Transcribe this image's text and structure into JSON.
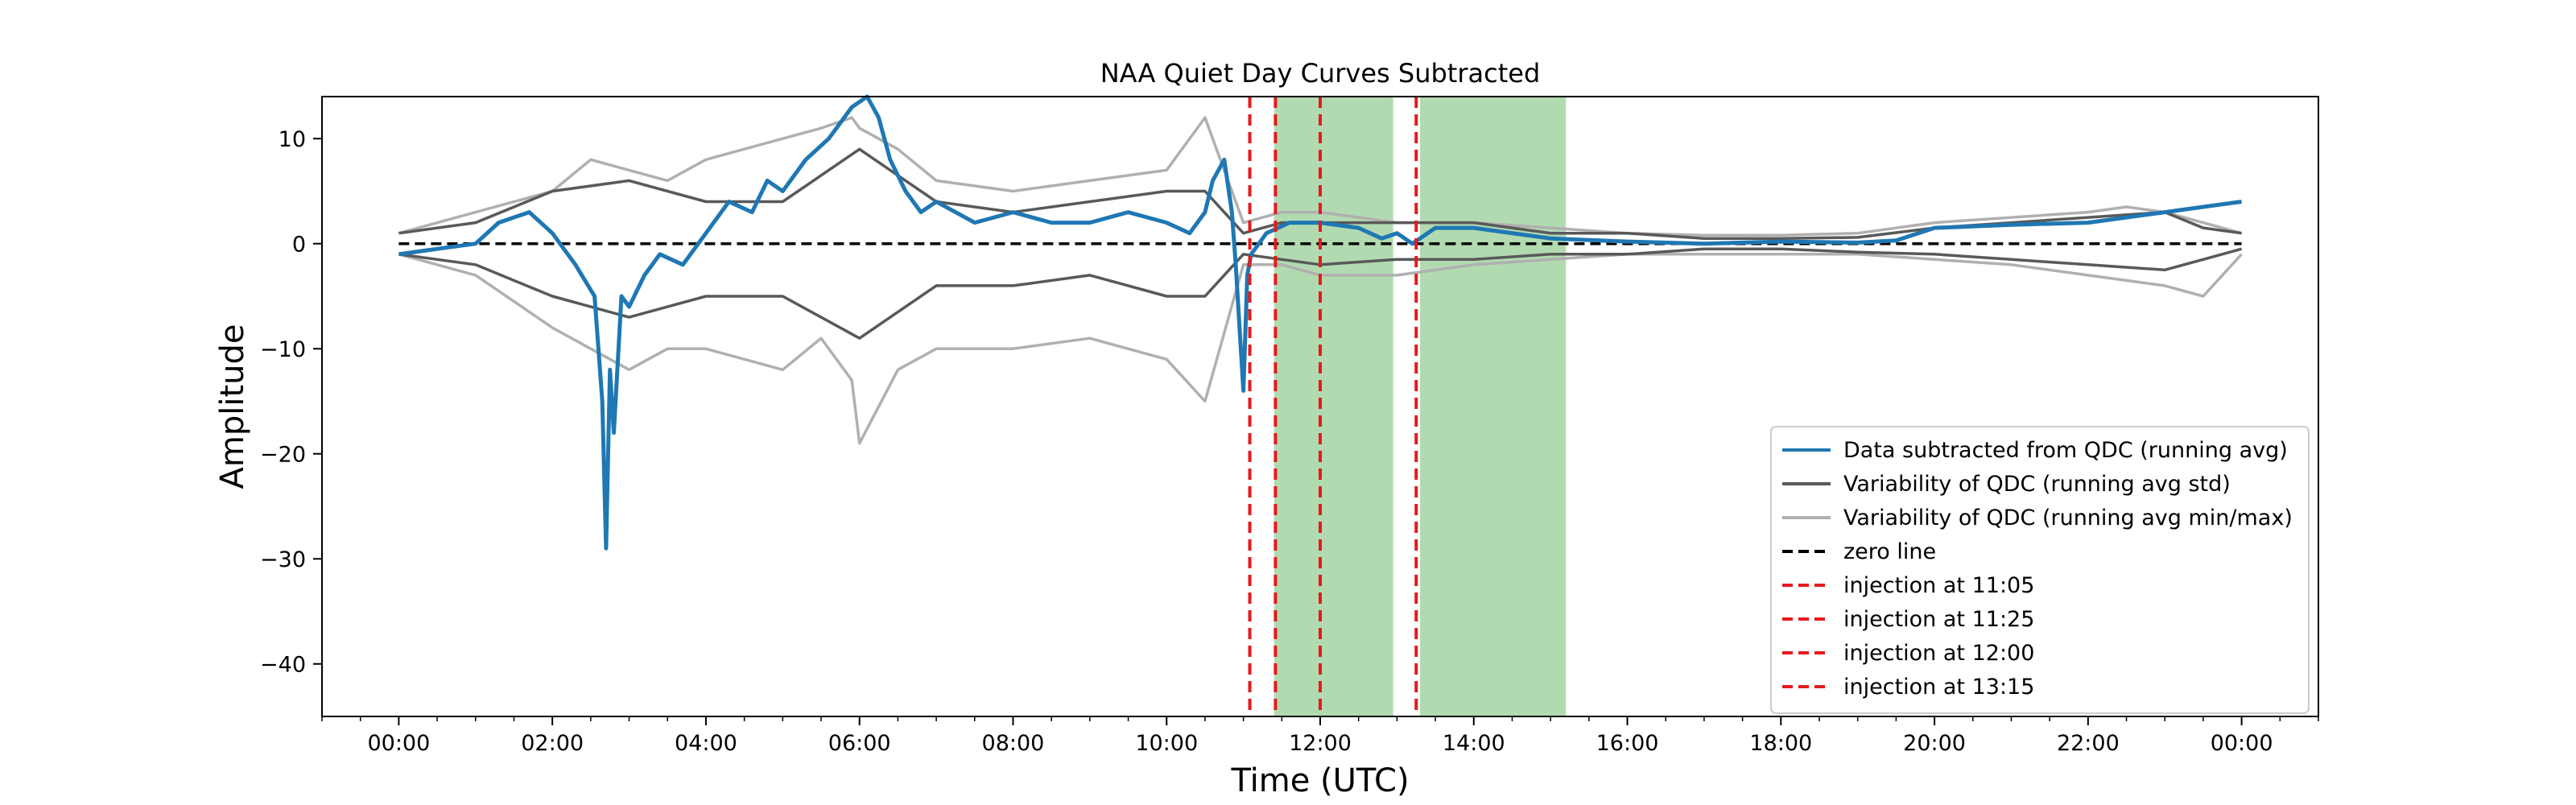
{
  "chart_data": {
    "type": "line",
    "title": "NAA Quiet Day Curves Subtracted",
    "xlabel": "Time (UTC)",
    "ylabel": "Amplitude",
    "xlim_hours": [
      -1.0,
      25.0
    ],
    "ylim": [
      -45,
      14
    ],
    "x_tick_labels": [
      "00:00",
      "02:00",
      "04:00",
      "06:00",
      "08:00",
      "10:00",
      "12:00",
      "14:00",
      "16:00",
      "18:00",
      "20:00",
      "22:00",
      "00:00"
    ],
    "x_tick_hours": [
      0,
      2,
      4,
      6,
      8,
      10,
      12,
      14,
      16,
      18,
      20,
      22,
      24
    ],
    "y_ticks": [
      10,
      0,
      -10,
      -20,
      -30,
      -40
    ],
    "y_tick_labels": [
      "10",
      "0",
      "−10",
      "−20",
      "−30",
      "−40"
    ],
    "grid": false,
    "legend_position": "lower-right",
    "shaded_regions_hours": [
      [
        11.4,
        12.95
      ],
      [
        13.3,
        15.2
      ]
    ],
    "zero_line": {
      "name": "zero line",
      "y": 0
    },
    "injections": [
      {
        "name": "injection at 11:05",
        "hour": 11.083
      },
      {
        "name": "injection at 11:25",
        "hour": 11.417
      },
      {
        "name": "injection at 12:00",
        "hour": 12.0
      },
      {
        "name": "injection at 13:15",
        "hour": 13.25
      }
    ],
    "series": [
      {
        "name": "Data subtracted from QDC (running avg)",
        "x": [
          0,
          0.5,
          1,
          1.3,
          1.7,
          2.0,
          2.3,
          2.55,
          2.65,
          2.7,
          2.75,
          2.8,
          2.9,
          3.0,
          3.2,
          3.4,
          3.7,
          4.0,
          4.3,
          4.6,
          4.8,
          5.0,
          5.3,
          5.6,
          5.9,
          6.1,
          6.25,
          6.4,
          6.6,
          6.8,
          7.0,
          7.5,
          8.0,
          8.5,
          9.0,
          9.5,
          10.0,
          10.3,
          10.5,
          10.6,
          10.75,
          10.85,
          10.9,
          10.95,
          11.0,
          11.05,
          11.1,
          11.3,
          11.6,
          12.0,
          12.5,
          12.8,
          13.0,
          13.2,
          13.5,
          14.0,
          15.0,
          16.0,
          17.0,
          18.0,
          19.0,
          19.5,
          20.0,
          21.0,
          22.0,
          23.0,
          23.5,
          24.0
        ],
        "y": [
          -1,
          -0.5,
          0,
          2,
          3,
          1,
          -2,
          -5,
          -15,
          -29,
          -12,
          -18,
          -5,
          -6,
          -3,
          -1,
          -2,
          1,
          4,
          3,
          6,
          5,
          8,
          10,
          13,
          14,
          12,
          8,
          5,
          3,
          4,
          2,
          3,
          2,
          2,
          3,
          2,
          1,
          3,
          6,
          8,
          3,
          -2,
          -8,
          -14,
          -3,
          -1,
          1,
          2,
          2,
          1.5,
          0.5,
          1,
          0,
          1.5,
          1.5,
          0.5,
          0.2,
          0,
          0.2,
          0.1,
          0.3,
          1.5,
          1.8,
          2,
          3,
          3.5,
          4
        ]
      },
      {
        "name": "Variability of QDC (running avg std)",
        "x": [
          0,
          1,
          2,
          3,
          4,
          5,
          6,
          7,
          8,
          9,
          10,
          10.5,
          11,
          11.5,
          12,
          13,
          14,
          15,
          16,
          17,
          18,
          19,
          20,
          21,
          22,
          23,
          23.5,
          24
        ],
        "y_upper": [
          1,
          2,
          5,
          6,
          4,
          4,
          9,
          4,
          3,
          4,
          5,
          5,
          1,
          2,
          2,
          2,
          2,
          1,
          1,
          0.5,
          0.5,
          0.6,
          1.5,
          2,
          2.5,
          3,
          1.5,
          1
        ],
        "y_lower": [
          -1,
          -2,
          -5,
          -7,
          -5,
          -5,
          -9,
          -4,
          -4,
          -3,
          -5,
          -5,
          -1,
          -1.5,
          -2,
          -1.5,
          -1.5,
          -1,
          -1,
          -0.5,
          -0.5,
          -0.8,
          -1,
          -1.5,
          -2,
          -2.5,
          -1.5,
          -0.5
        ]
      },
      {
        "name": "Variability of QDC (running avg min/max)",
        "x": [
          0,
          1,
          2,
          2.5,
          3,
          3.5,
          4,
          5,
          5.5,
          5.9,
          6,
          6.5,
          7,
          8,
          9,
          10,
          10.5,
          11,
          11.5,
          12,
          13,
          14,
          15,
          16,
          17,
          18,
          19,
          20,
          21,
          22,
          22.5,
          23,
          23.5,
          24
        ],
        "y_upper": [
          1,
          3,
          5,
          8,
          7,
          6,
          8,
          10,
          11,
          12,
          11,
          9,
          6,
          5,
          6,
          7,
          12,
          2,
          3,
          3,
          2,
          2,
          1.5,
          1,
          0.8,
          0.8,
          1,
          2,
          2.5,
          3,
          3.5,
          3,
          2,
          1
        ],
        "y_lower": [
          -1,
          -3,
          -8,
          -10,
          -12,
          -10,
          -10,
          -12,
          -9,
          -13,
          -19,
          -12,
          -10,
          -10,
          -9,
          -11,
          -15,
          -2,
          -2,
          -3,
          -3,
          -2,
          -1.5,
          -1,
          -1,
          -1,
          -1,
          -1.5,
          -2,
          -3,
          -3.5,
          -4,
          -5,
          -1
        ]
      }
    ],
    "colors": {
      "data": "#1f77b4",
      "std": "#595959",
      "minmax": "#b0b0b0",
      "zero": "#000000",
      "injection": "#e41a1c",
      "shade": "#b2dab1"
    }
  }
}
